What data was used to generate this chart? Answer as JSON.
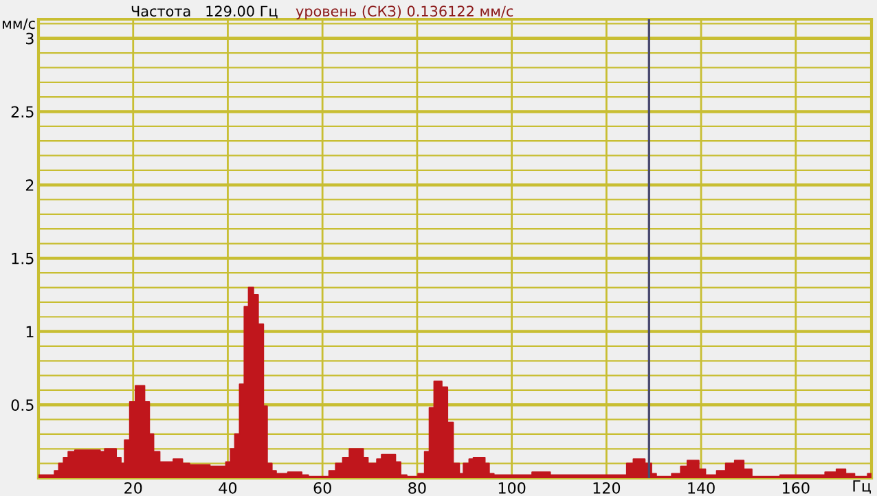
{
  "chart_data": {
    "type": "area",
    "title": "Частота   129.00 Гц",
    "subtitle": "уровень (СКЗ) 0.136122 мм/с",
    "xlabel": "Гц",
    "ylabel": "мм/с",
    "x": [
      0,
      3.4,
      4.3,
      5.3,
      6.3,
      7.7,
      13,
      14,
      16.4,
      17.4,
      18.2,
      19.3,
      20.5,
      22.4,
      23.4,
      24.3,
      25.6,
      28.5,
      30.4,
      31.9,
      36.2,
      39.6,
      40.6,
      41.5,
      42.5,
      43.5,
      44.4,
      45.4,
      46.4,
      47.5,
      48.3,
      49.3,
      50.2,
      52.7,
      55.6,
      57,
      61.4,
      62.8,
      64.3,
      65.7,
      68.6,
      69.6,
      71.5,
      72.5,
      75.4,
      76.5,
      77.8,
      80.2,
      81.6,
      82.6,
      83.6,
      85.2,
      86.4,
      87.6,
      88.9,
      89.8,
      91,
      91.9,
      94.3,
      95.2,
      96.2,
      104.3,
      108.1,
      116.7,
      124.3,
      125.7,
      128.1,
      129.5,
      130.5,
      133.8,
      135.7,
      137.1,
      139.5,
      140.9,
      143.3,
      145.2,
      147.1,
      149,
      150.7,
      156.7,
      166.2,
      168.6,
      170.5,
      172.4,
      175.2
    ],
    "series": [
      {
        "color": "#c0161c",
        "values": [
          0.02,
          0.05,
          0.1,
          0.14,
          0.18,
          0.19,
          0.18,
          0.2,
          0.14,
          0.1,
          0.26,
          0.52,
          0.63,
          0.52,
          0.3,
          0.18,
          0.11,
          0.13,
          0.1,
          0.09,
          0.08,
          0.11,
          0.2,
          0.3,
          0.64,
          1.17,
          1.3,
          1.25,
          1.05,
          0.49,
          0.1,
          0.05,
          0.03,
          0.04,
          0.02,
          0.01,
          0.05,
          0.1,
          0.14,
          0.2,
          0.14,
          0.1,
          0.13,
          0.16,
          0.11,
          0.02,
          0.01,
          0.03,
          0.18,
          0.48,
          0.66,
          0.62,
          0.38,
          0.1,
          0.03,
          0.1,
          0.13,
          0.14,
          0.1,
          0.03,
          0.02,
          0.04,
          0.02,
          0.02,
          0.1,
          0.13,
          0.1,
          0.03,
          0.01,
          0.03,
          0.08,
          0.12,
          0.06,
          0.02,
          0.05,
          0.1,
          0.12,
          0.06,
          0.01,
          0.02,
          0.04,
          0.06,
          0.03,
          0.01,
          0.03
        ]
      }
    ],
    "xlim": [
      0,
      176
    ],
    "ylim": [
      0,
      3.13
    ],
    "xticks": [
      20,
      40,
      60,
      80,
      100,
      120,
      140,
      160
    ],
    "yticks": [
      {
        "value": 0.1,
        "label": null
      },
      {
        "value": 0.2,
        "label": null
      },
      {
        "value": 0.3,
        "label": null
      },
      {
        "value": 0.4,
        "label": null
      },
      0.5,
      {
        "value": 0.6,
        "label": null
      },
      {
        "value": 0.7,
        "label": null
      },
      {
        "value": 0.8,
        "label": null
      },
      {
        "value": 0.9,
        "label": null
      },
      1,
      {
        "value": 1.1,
        "label": null
      },
      {
        "value": 1.2,
        "label": null
      },
      {
        "value": 1.3,
        "label": null
      },
      {
        "value": 1.4,
        "label": null
      },
      1.5,
      {
        "value": 1.6,
        "label": null
      },
      {
        "value": 1.7,
        "label": null
      },
      {
        "value": 1.8,
        "label": null
      },
      {
        "value": 1.9,
        "label": null
      },
      2,
      {
        "value": 2.1,
        "label": null
      },
      {
        "value": 2.2,
        "label": null
      },
      {
        "value": 2.3,
        "label": null
      },
      {
        "value": 2.4,
        "label": null
      },
      2.5,
      {
        "value": 2.6,
        "label": null
      },
      {
        "value": 2.7,
        "label": null
      },
      {
        "value": 2.8,
        "label": null
      },
      {
        "value": 2.9,
        "label": null
      },
      3,
      {
        "value": 3.1,
        "label": null
      }
    ],
    "ref_lines": [
      {
        "axis": "x",
        "value": 129,
        "color": "#4a4a70"
      }
    ],
    "grid": true
  }
}
